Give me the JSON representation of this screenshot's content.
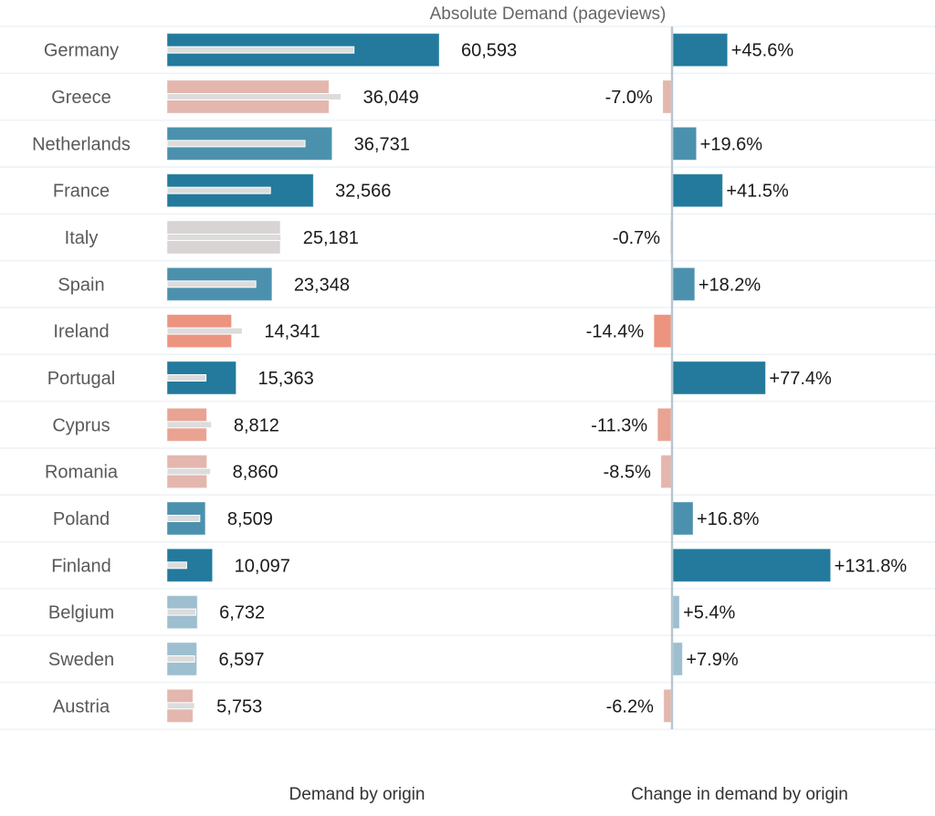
{
  "chart_data": {
    "type": "bar",
    "title": "Absolute Demand (pageviews)",
    "panels": [
      {
        "name": "left",
        "xlabel": "Demand by origin"
      },
      {
        "name": "right",
        "xlabel": "Change in demand by origin"
      }
    ],
    "categories": [
      "Germany",
      "Greece",
      "Netherlands",
      "France",
      "Italy",
      "Spain",
      "Ireland",
      "Portugal",
      "Cyprus",
      "Romania",
      "Poland",
      "Finland",
      "Belgium",
      "Sweden",
      "Austria"
    ],
    "series": [
      {
        "name": "Demand (pageviews)",
        "values": [
          60593,
          36049,
          36731,
          32566,
          25181,
          23348,
          14341,
          15363,
          8812,
          8860,
          8509,
          10097,
          6732,
          6597,
          5753
        ],
        "labels": [
          "60,593",
          "36,049",
          "36,731",
          "32,566",
          "25,181",
          "23,348",
          "14,341",
          "15,363",
          "8,812",
          "8,860",
          "8,509",
          "10,097",
          "6,732",
          "6,597",
          "5,753"
        ]
      },
      {
        "name": "Change in demand (%)",
        "values": [
          45.6,
          -7.0,
          19.6,
          41.5,
          -0.7,
          18.2,
          -14.4,
          77.4,
          -11.3,
          -8.5,
          16.8,
          131.8,
          5.4,
          7.9,
          -6.2
        ],
        "labels": [
          "+45.6%",
          "-7.0%",
          "+19.6%",
          "+41.5%",
          "-0.7%",
          "+18.2%",
          "-14.4%",
          "+77.4%",
          "-11.3%",
          "-8.5%",
          "+16.8%",
          "+131.8%",
          "+5.4%",
          "+7.9%",
          "-6.2%"
        ]
      }
    ],
    "reference_bar": "previous-period demand (grey inner bar) = demand / (1 + change)",
    "grid": false,
    "colors": {
      "strong_positive": "#237a9c",
      "medium_positive": "#4b91ae",
      "light_positive": "#9dbfcf",
      "neutral": "#d9d4d4",
      "light_negative": "#e3b6ae",
      "medium_negative": "#e8a393",
      "strong_negative": "#ec9480",
      "reference_bar": "#dcdcdc",
      "axis": "#b7c7d1",
      "row_divider": "#eef2f6"
    }
  }
}
